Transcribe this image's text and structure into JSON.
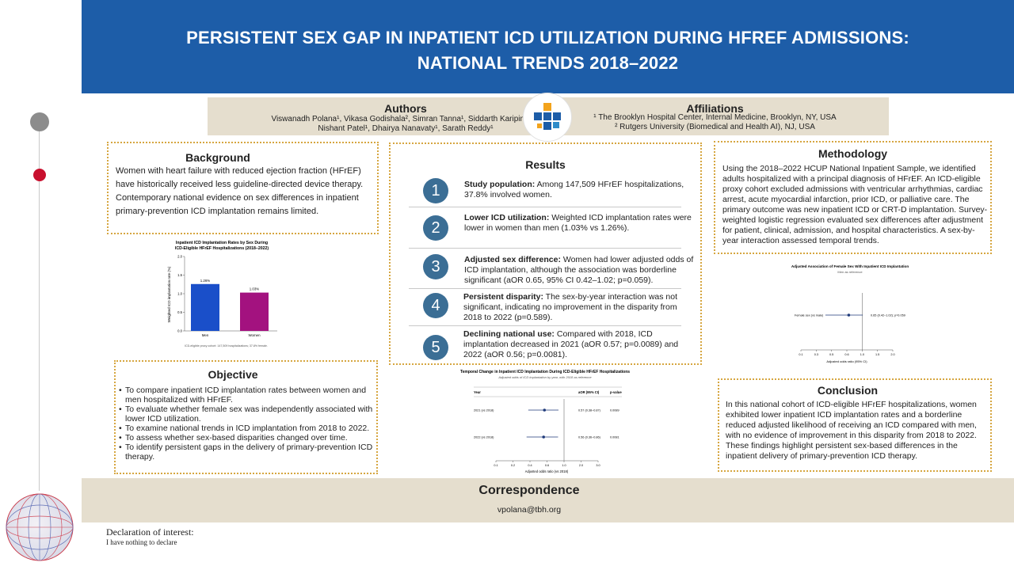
{
  "header": {
    "title_line1": "PERSISTENT SEX GAP IN INPATIENT ICD UTILIZATION DURING HFREF ADMISSIONS:",
    "title_line2": "NATIONAL TRENDS 2018–2022"
  },
  "authors": {
    "heading": "Authors",
    "line1": "Viswanadh Polana¹, Vikasa Godishala², Simran Tanna¹, Siddarth Karipineni¹,",
    "line2": "Nishant Patel¹, Dhairya Nanavaty¹, Sarath Reddy¹"
  },
  "affiliations": {
    "heading": "Affiliations",
    "line1": "¹ The Brooklyn Hospital Center, Internal Medicine, Brooklyn, NY, USA",
    "line2": "² Rutgers University (Biomedical and Health AI), NJ, USA"
  },
  "background": {
    "heading": "Background",
    "text": "Women with heart failure with reduced ejection fraction (HFrEF) have historically received less guideline-directed device therapy. Contemporary national evidence on sex differences in inpatient primary-prevention ICD implantation remains limited."
  },
  "objective": {
    "heading": "Objective",
    "items": [
      "To compare inpatient ICD implantation rates between women and men hospitalized with HFrEF.",
      "To evaluate whether female sex was independently associated with lower ICD utilization.",
      "To examine national trends in ICD implantation from 2018 to 2022.",
      "To assess whether sex-based disparities changed over time.",
      "To identify persistent gaps in the delivery of primary-prevention ICD therapy."
    ]
  },
  "results": {
    "heading": "Results",
    "items": [
      {
        "num": "1",
        "bold": "Study population:",
        "text": " Among 147,509 HFrEF hospitalizations, 37.8% involved women."
      },
      {
        "num": "2",
        "bold": "Lower ICD utilization:",
        "text": " Weighted ICD implantation rates were lower in women than men (1.03% vs 1.26%)."
      },
      {
        "num": "3",
        "bold": "Adjusted sex difference:",
        "text": " Women had lower adjusted odds of ICD implantation, although the association was borderline significant (aOR 0.65, 95% CI 0.42–1.02; p=0.059)."
      },
      {
        "num": "4",
        "bold": "Persistent disparity:",
        "text": " The sex-by-year interaction was not significant, indicating no improvement in the disparity from 2018 to 2022 (p=0.589)."
      },
      {
        "num": "5",
        "bold": "Declining national use:",
        "text": " Compared with 2018, ICD implantation decreased in 2021 (aOR 0.57; p=0.0089) and 2022 (aOR 0.56; p=0.0081)."
      }
    ]
  },
  "methodology": {
    "heading": "Methodology",
    "text": "Using the 2018–2022 HCUP National Inpatient Sample, we identified adults hospitalized with a principal diagnosis of HFrEF. An ICD-eligible proxy cohort excluded admissions with ventricular arrhythmias, cardiac arrest, acute myocardial infarction, prior ICD, or palliative care. The primary outcome was new inpatient ICD or CRT-D implantation. Survey-weighted logistic regression evaluated sex differences after adjustment for patient, clinical, admission, and hospital characteristics. A sex-by-year interaction assessed temporal trends."
  },
  "conclusion": {
    "heading": "Conclusion",
    "text": "In this national cohort of ICD-eligible HFrEF hospitalizations, women exhibited lower inpatient ICD implantation rates and a borderline reduced adjusted likelihood of receiving an ICD compared with men, with no evidence of improvement in this disparity from 2018 to 2022. These findings highlight persistent sex-based differences in the inpatient delivery of primary-prevention ICD therapy."
  },
  "correspondence": {
    "heading": "Correspondence",
    "email": "vpolana@tbh.org"
  },
  "declaration": {
    "heading": "Declaration of interest:",
    "text": "I have nothing to declare"
  },
  "colors": {
    "header_blue": "#1d5da8",
    "bar_beige": "#e5dece",
    "panel_border": "#d6a640",
    "number_circle": "#3b6e95",
    "men_bar": "#1a4fc9",
    "women_bar": "#a3127f"
  },
  "chart_data": [
    {
      "type": "bar",
      "title": "Inpatient ICD Implantation Rates by Sex During ICD-Eligible HFrEF Hospitalizations (2018–2022)",
      "categories": [
        "Men",
        "Women"
      ],
      "values": [
        1.26,
        1.03
      ],
      "value_labels": [
        "1.26%",
        "1.03%"
      ],
      "ylabel": "Weighted ICD implantation rate (%)",
      "ylim": [
        0,
        2.0
      ],
      "yticks": [
        "0.0",
        "0.5",
        "1.0",
        "1.5",
        "2.0"
      ],
      "footnote": "ICD-eligible proxy cohort: 147,509 hospitalizations; 37.8% female."
    },
    {
      "type": "scatter",
      "subtype": "forest",
      "title": "Adjusted Association of Female Sex With Inpatient ICD Implantation",
      "subtitle": "Men as reference",
      "rows": [
        {
          "label": "Female sex (vs male)",
          "aor": 0.65,
          "ci": [
            0.42,
            1.02
          ],
          "text": "0.65 (0.42–1.02); p=0.059"
        }
      ],
      "xlabel": "Adjusted odds ratio (95% CI)",
      "xticks": [
        "0.1",
        "0.3",
        "0.5",
        "0.6",
        "1.0",
        "1.5",
        "2.0"
      ],
      "reference_line": 1.0
    },
    {
      "type": "scatter",
      "subtype": "forest",
      "title": "Temporal Change in Inpatient ICD Implantation During ICD-Eligible HFrEF Hospitalizations",
      "subtitle": "Adjusted odds of ICD implantation by year, with 2018 as reference",
      "columns": [
        "Year",
        "aOR (95% CI)",
        "p-value"
      ],
      "rows": [
        {
          "label": "2021 (vs 2018)",
          "aor": 0.57,
          "ci": [
            0.38,
            0.87
          ],
          "text": "0.57 (0.38–0.87)",
          "p": "0.0089"
        },
        {
          "label": "2022 (vs 2018)",
          "aor": 0.56,
          "ci": [
            0.36,
            0.86
          ],
          "text": "0.56 (0.36–0.86)",
          "p": "0.0081"
        }
      ],
      "xlabel": "Adjusted odds ratio (vs 2018)",
      "xticks": [
        "0.1",
        "0.2",
        "0.4",
        "0.6",
        "1.0",
        "2.0",
        "3.0"
      ],
      "reference_line": 1.0
    }
  ]
}
